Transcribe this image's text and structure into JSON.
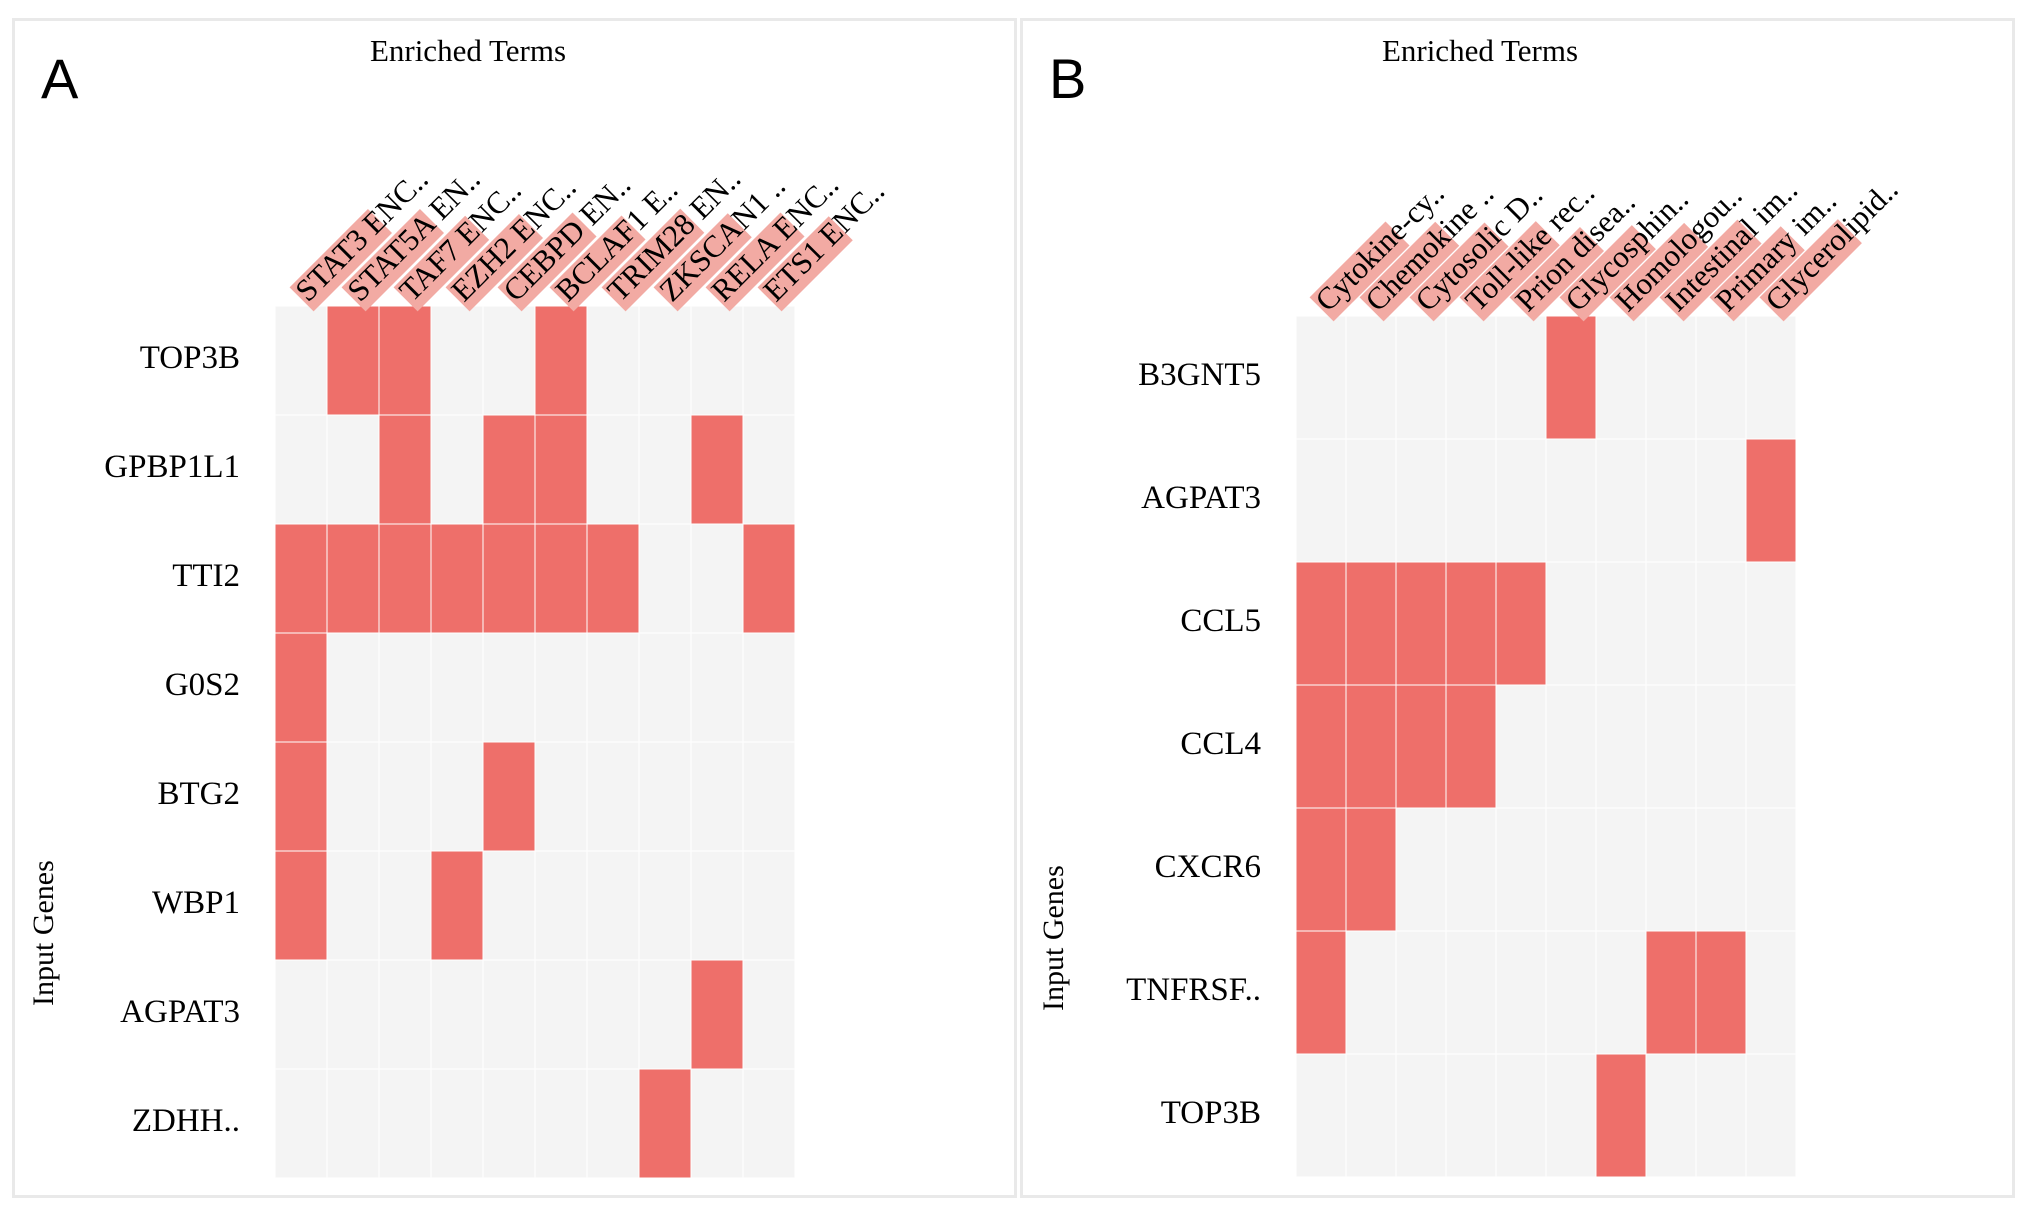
{
  "chart_data": [
    {
      "type": "heatmap",
      "panel_label": "A",
      "title": "Enriched Terms",
      "ylabel": "Input Genes",
      "columns": [
        "STAT3 ENC..",
        "STAT5A EN..",
        "TAF7 ENC..",
        "EZH2 ENC..",
        "CEBPD EN..",
        "BCLAF1 E..",
        "TRIM28 EN..",
        "ZKSCAN1 ..",
        "RELA ENC..",
        "ETS1 ENC.."
      ],
      "rows": [
        "TOP3B",
        "GPBP1L1",
        "TTI2",
        "G0S2",
        "BTG2",
        "WBP1",
        "AGPAT3",
        "ZDHH.."
      ],
      "matrix": [
        [
          0,
          1,
          1,
          0,
          0,
          1,
          0,
          0,
          0,
          0
        ],
        [
          0,
          0,
          1,
          0,
          1,
          1,
          0,
          0,
          1,
          0
        ],
        [
          1,
          1,
          1,
          1,
          1,
          1,
          1,
          0,
          0,
          1
        ],
        [
          1,
          0,
          0,
          0,
          0,
          0,
          0,
          0,
          0,
          0
        ],
        [
          1,
          0,
          0,
          0,
          1,
          0,
          0,
          0,
          0,
          0
        ],
        [
          1,
          0,
          0,
          1,
          0,
          0,
          0,
          0,
          0,
          0
        ],
        [
          0,
          0,
          0,
          0,
          0,
          0,
          0,
          0,
          1,
          0
        ],
        [
          0,
          0,
          0,
          0,
          0,
          0,
          0,
          1,
          0,
          0
        ]
      ]
    },
    {
      "type": "heatmap",
      "panel_label": "B",
      "title": "Enriched Terms",
      "ylabel": "Input Genes",
      "columns": [
        "Cytokine-cy..",
        "Chemokine ..",
        "Cytosolic D..",
        "Toll-like rec..",
        "Prion disea..",
        "Glycosphin..",
        "Homologou..",
        "Intestinal im..",
        "Primary im..",
        "Glycerolipid.."
      ],
      "rows": [
        "B3GNT5",
        "AGPAT3",
        "CCL5",
        "CCL4",
        "CXCR6",
        "TNFRSF..",
        "TOP3B"
      ],
      "matrix": [
        [
          0,
          0,
          0,
          0,
          0,
          1,
          0,
          0,
          0,
          0
        ],
        [
          0,
          0,
          0,
          0,
          0,
          0,
          0,
          0,
          0,
          1
        ],
        [
          1,
          1,
          1,
          1,
          1,
          0,
          0,
          0,
          0,
          0
        ],
        [
          1,
          1,
          1,
          1,
          0,
          0,
          0,
          0,
          0,
          0
        ],
        [
          1,
          1,
          0,
          0,
          0,
          0,
          0,
          0,
          0,
          0
        ],
        [
          1,
          0,
          0,
          0,
          0,
          0,
          0,
          1,
          1,
          0
        ],
        [
          0,
          0,
          0,
          0,
          0,
          0,
          1,
          0,
          0,
          0
        ]
      ]
    }
  ],
  "colors": {
    "active": "#ee6f6a",
    "inactive": "#f4f4f4",
    "label_highlight": "#f2aaa3",
    "grid": "#ffffff"
  }
}
